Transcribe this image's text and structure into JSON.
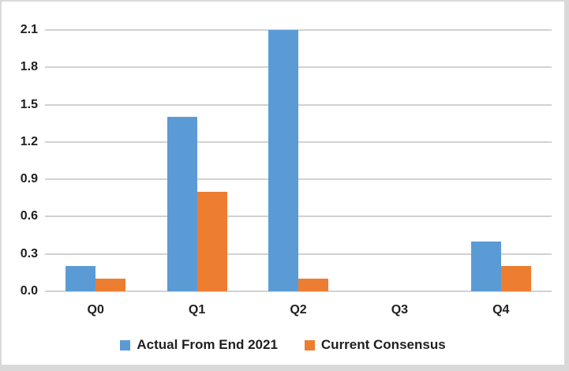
{
  "chart_data": {
    "type": "bar",
    "title": "",
    "xlabel": "",
    "ylabel": "",
    "categories": [
      "Q0",
      "Q1",
      "Q2",
      "Q3",
      "Q4"
    ],
    "series": [
      {
        "name": "Actual From End 2021",
        "color": "#5B9BD5",
        "values": [
          0.2,
          1.4,
          2.1,
          0,
          0.4
        ]
      },
      {
        "name": "Current Consensus",
        "color": "#ED7D31",
        "values": [
          0.1,
          0.8,
          0.1,
          0,
          0.2
        ]
      }
    ],
    "ylim": [
      0,
      2.1
    ],
    "yticks": [
      0.0,
      0.3,
      0.6,
      0.9,
      1.2,
      1.5,
      1.8,
      2.1
    ],
    "grid": true,
    "legend_position": "bottom",
    "gridline_color": "#D2D2D2",
    "axis_text_color": "#1F1F1F",
    "background": "#FFFFFF",
    "frame_border_color": "#D9D9D9"
  }
}
